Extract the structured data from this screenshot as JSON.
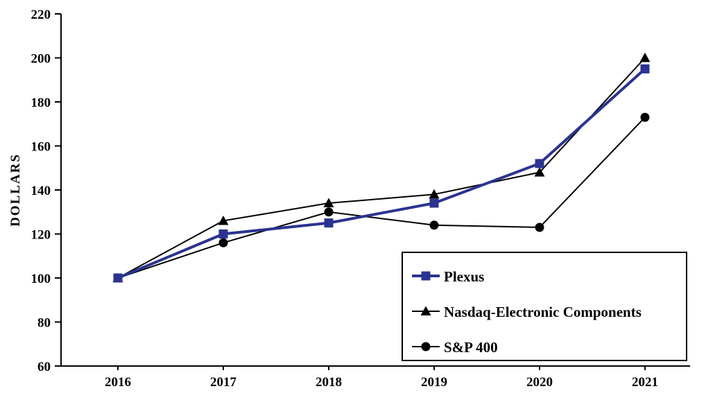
{
  "chart_data": {
    "type": "line",
    "title": "",
    "ylabel": "DOLLARS",
    "xlabel": "",
    "ylim": [
      60,
      220
    ],
    "ytick_step": 20,
    "grid": false,
    "legend_position": "bottom-right",
    "x": [
      "2016",
      "2017",
      "2018",
      "2019",
      "2020",
      "2021"
    ],
    "series": [
      {
        "name": "Plexus",
        "marker": "square",
        "color": "#2b3390",
        "line_width": 4,
        "values": [
          100,
          120,
          125,
          134,
          152,
          195
        ]
      },
      {
        "name": "Nasdaq-Electronic Components",
        "marker": "triangle",
        "color": "#000000",
        "line_width": 2,
        "values": [
          100,
          126,
          134,
          138,
          148,
          200
        ]
      },
      {
        "name": "S&P 400",
        "marker": "circle",
        "color": "#000000",
        "line_width": 2,
        "values": [
          100,
          116,
          130,
          124,
          123,
          173
        ]
      }
    ]
  }
}
